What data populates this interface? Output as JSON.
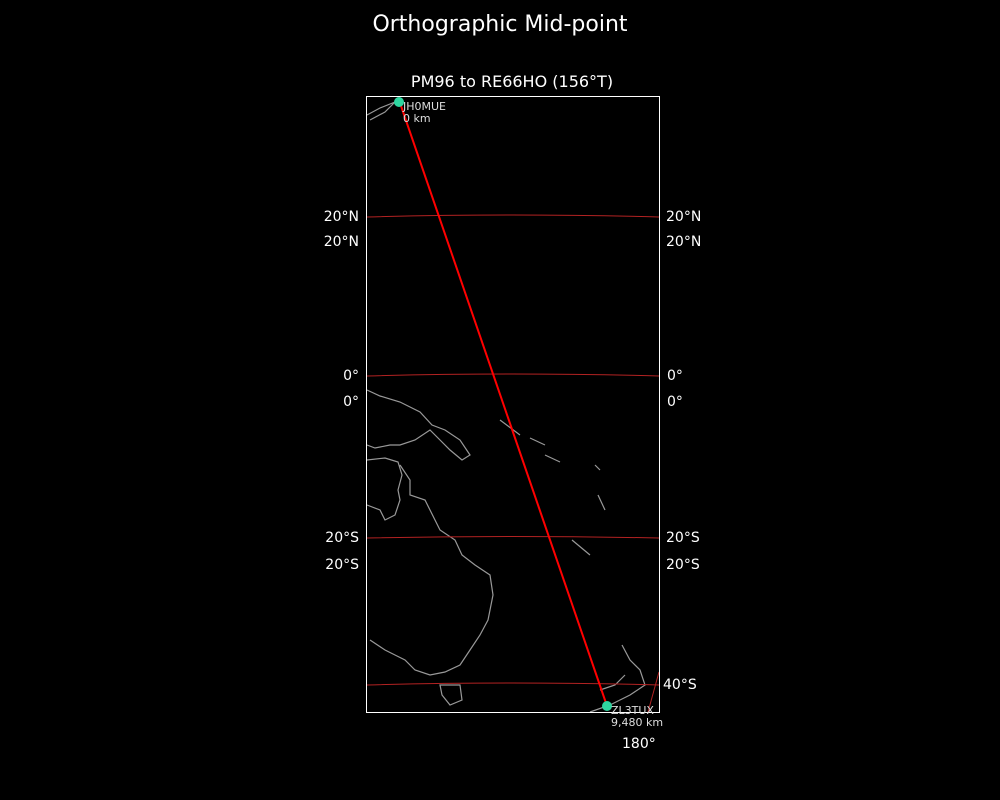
{
  "title": "Orthographic Mid-point",
  "subtitle": "PM96 to RE66HO (156°T)",
  "projection": "orthographic",
  "path_color": "#ff0000",
  "graticule_color": "#b22222",
  "station_color": "#2ed6a0",
  "lat_labels_left": [
    "20°N",
    "20°N",
    "0°",
    "0°",
    "20°S",
    "20°S"
  ],
  "lat_labels_right": [
    "20°N",
    "20°N",
    "0°",
    "0°",
    "20°S",
    "20°S",
    "40°S"
  ],
  "lon_labels": [
    "180°"
  ],
  "stations": [
    {
      "call": "JH0MUE",
      "distance": "0 km"
    },
    {
      "call": "ZL3TUX",
      "distance": "9,480 km"
    }
  ]
}
